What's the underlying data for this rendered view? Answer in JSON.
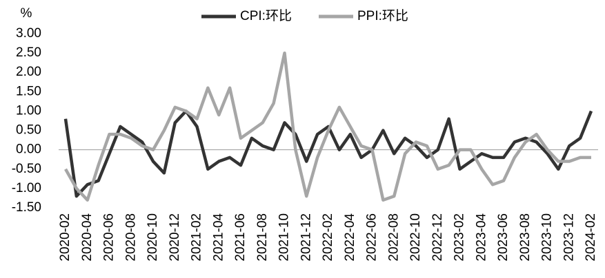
{
  "chart_data": {
    "type": "line",
    "y_label": "%",
    "categories": [
      "2020-02",
      null,
      "2020-04",
      null,
      "2020-06",
      null,
      "2020-08",
      null,
      "2020-10",
      null,
      "2020-12",
      null,
      "2021-02",
      null,
      "2021-04",
      null,
      "2021-06",
      null,
      "2021-08",
      null,
      "2021-10",
      null,
      "2021-12",
      null,
      "2022-02",
      null,
      "2022-04",
      null,
      "2022-06",
      null,
      "2022-08",
      null,
      "2022-10",
      null,
      "2022-12",
      null,
      "2023-02",
      null,
      "2023-04",
      null,
      "2023-06",
      null,
      "2023-08",
      null,
      "2023-10",
      null,
      "2023-12",
      null,
      "2024-02"
    ],
    "series": [
      {
        "name": "CPI:环比",
        "color": "#333333",
        "values": [
          0.8,
          -1.2,
          -0.9,
          -0.8,
          -0.1,
          0.6,
          0.4,
          0.2,
          -0.3,
          -0.6,
          0.7,
          1.0,
          0.6,
          -0.5,
          -0.3,
          -0.2,
          -0.4,
          0.3,
          0.1,
          0.0,
          0.7,
          0.4,
          -0.3,
          0.4,
          0.6,
          0.0,
          0.4,
          -0.2,
          0.0,
          0.5,
          -0.1,
          0.3,
          0.1,
          -0.2,
          0.0,
          0.8,
          -0.5,
          -0.3,
          -0.1,
          -0.2,
          -0.2,
          0.2,
          0.3,
          0.2,
          -0.1,
          -0.5,
          0.1,
          0.3,
          1.0
        ]
      },
      {
        "name": "PPI:环比",
        "color": "#a6a6a6",
        "values": [
          -0.5,
          -1.0,
          -1.3,
          -0.4,
          0.4,
          0.4,
          0.3,
          0.1,
          0.0,
          0.5,
          1.1,
          1.0,
          0.8,
          1.6,
          0.9,
          1.6,
          0.3,
          0.5,
          0.7,
          1.2,
          2.5,
          0.0,
          -1.2,
          -0.2,
          0.5,
          1.1,
          0.6,
          0.1,
          0.0,
          -1.3,
          -1.2,
          -0.1,
          0.2,
          0.1,
          -0.5,
          -0.4,
          0.0,
          0.0,
          -0.5,
          -0.9,
          -0.8,
          -0.2,
          0.2,
          0.4,
          0.0,
          -0.3,
          -0.3,
          -0.2,
          -0.2
        ]
      }
    ],
    "ylim": [
      -1.5,
      3.0
    ],
    "yticks": [
      {
        "value": -1.5,
        "label": "-1.50"
      },
      {
        "value": -1.0,
        "label": "-1.00"
      },
      {
        "value": -0.5,
        "label": "-0.50"
      },
      {
        "value": 0,
        "label": "0.00"
      },
      {
        "value": 0.5,
        "label": "0.50"
      },
      {
        "value": 1.0,
        "label": "1.00"
      },
      {
        "value": 1.5,
        "label": "1.50"
      },
      {
        "value": 2.0,
        "label": "2.00"
      },
      {
        "value": 2.5,
        "label": "2.50"
      },
      {
        "value": 3.0,
        "label": "3.00"
      }
    ],
    "grid": false,
    "legend": "top"
  }
}
